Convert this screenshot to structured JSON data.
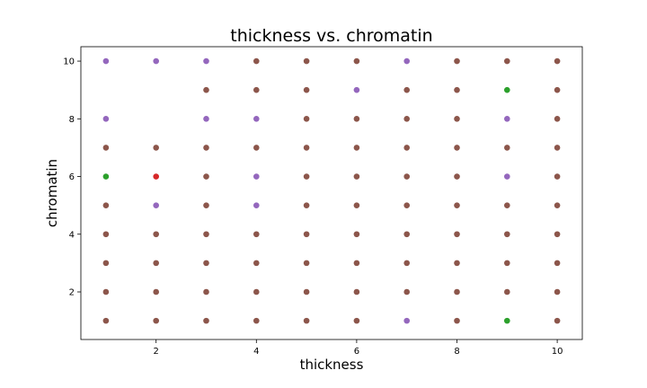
{
  "chart_data": {
    "type": "scatter",
    "title": "thickness vs. chromatin",
    "xlabel": "thickness",
    "ylabel": "chromatin",
    "xlim": [
      0.5,
      10.5
    ],
    "ylim": [
      0.35,
      10.5
    ],
    "xticks": [
      2,
      4,
      6,
      8,
      10
    ],
    "yticks": [
      2,
      4,
      6,
      8,
      10
    ],
    "grid": false,
    "legend": "none",
    "series": [
      {
        "color": "#8c564b",
        "points": [
          [
            1,
            7
          ],
          [
            1,
            5
          ],
          [
            1,
            4
          ],
          [
            1,
            3
          ],
          [
            1,
            2
          ],
          [
            1,
            1
          ],
          [
            2,
            7
          ],
          [
            2,
            4
          ],
          [
            2,
            3
          ],
          [
            2,
            2
          ],
          [
            2,
            1
          ],
          [
            3,
            9
          ],
          [
            3,
            7
          ],
          [
            3,
            6
          ],
          [
            3,
            5
          ],
          [
            3,
            4
          ],
          [
            3,
            3
          ],
          [
            3,
            2
          ],
          [
            3,
            1
          ],
          [
            4,
            10
          ],
          [
            4,
            9
          ],
          [
            4,
            7
          ],
          [
            4,
            4
          ],
          [
            4,
            3
          ],
          [
            4,
            2
          ],
          [
            4,
            1
          ],
          [
            5,
            10
          ],
          [
            5,
            9
          ],
          [
            5,
            8
          ],
          [
            5,
            7
          ],
          [
            5,
            6
          ],
          [
            5,
            5
          ],
          [
            5,
            4
          ],
          [
            5,
            3
          ],
          [
            5,
            2
          ],
          [
            5,
            1
          ],
          [
            6,
            10
          ],
          [
            6,
            8
          ],
          [
            6,
            7
          ],
          [
            6,
            6
          ],
          [
            6,
            5
          ],
          [
            6,
            4
          ],
          [
            6,
            3
          ],
          [
            6,
            2
          ],
          [
            6,
            1
          ],
          [
            7,
            9
          ],
          [
            7,
            8
          ],
          [
            7,
            7
          ],
          [
            7,
            6
          ],
          [
            7,
            5
          ],
          [
            7,
            4
          ],
          [
            7,
            3
          ],
          [
            7,
            2
          ],
          [
            8,
            10
          ],
          [
            8,
            9
          ],
          [
            8,
            8
          ],
          [
            8,
            7
          ],
          [
            8,
            6
          ],
          [
            8,
            5
          ],
          [
            8,
            4
          ],
          [
            8,
            3
          ],
          [
            8,
            2
          ],
          [
            8,
            1
          ],
          [
            9,
            10
          ],
          [
            9,
            7
          ],
          [
            9,
            5
          ],
          [
            9,
            4
          ],
          [
            9,
            3
          ],
          [
            9,
            2
          ],
          [
            10,
            10
          ],
          [
            10,
            9
          ],
          [
            10,
            8
          ],
          [
            10,
            7
          ],
          [
            10,
            6
          ],
          [
            10,
            5
          ],
          [
            10,
            4
          ],
          [
            10,
            3
          ],
          [
            10,
            2
          ],
          [
            10,
            1
          ]
        ]
      },
      {
        "color": "#9467bd",
        "points": [
          [
            1,
            10
          ],
          [
            1,
            8
          ],
          [
            2,
            10
          ],
          [
            2,
            5
          ],
          [
            3,
            10
          ],
          [
            3,
            8
          ],
          [
            4,
            8
          ],
          [
            4,
            6
          ],
          [
            4,
            5
          ],
          [
            6,
            9
          ],
          [
            7,
            10
          ],
          [
            7,
            1
          ],
          [
            9,
            8
          ],
          [
            9,
            6
          ]
        ]
      },
      {
        "color": "#2ca02c",
        "points": [
          [
            1,
            6
          ],
          [
            9,
            9
          ],
          [
            9,
            1
          ]
        ]
      },
      {
        "color": "#d62728",
        "points": [
          [
            2,
            6
          ]
        ]
      }
    ]
  }
}
